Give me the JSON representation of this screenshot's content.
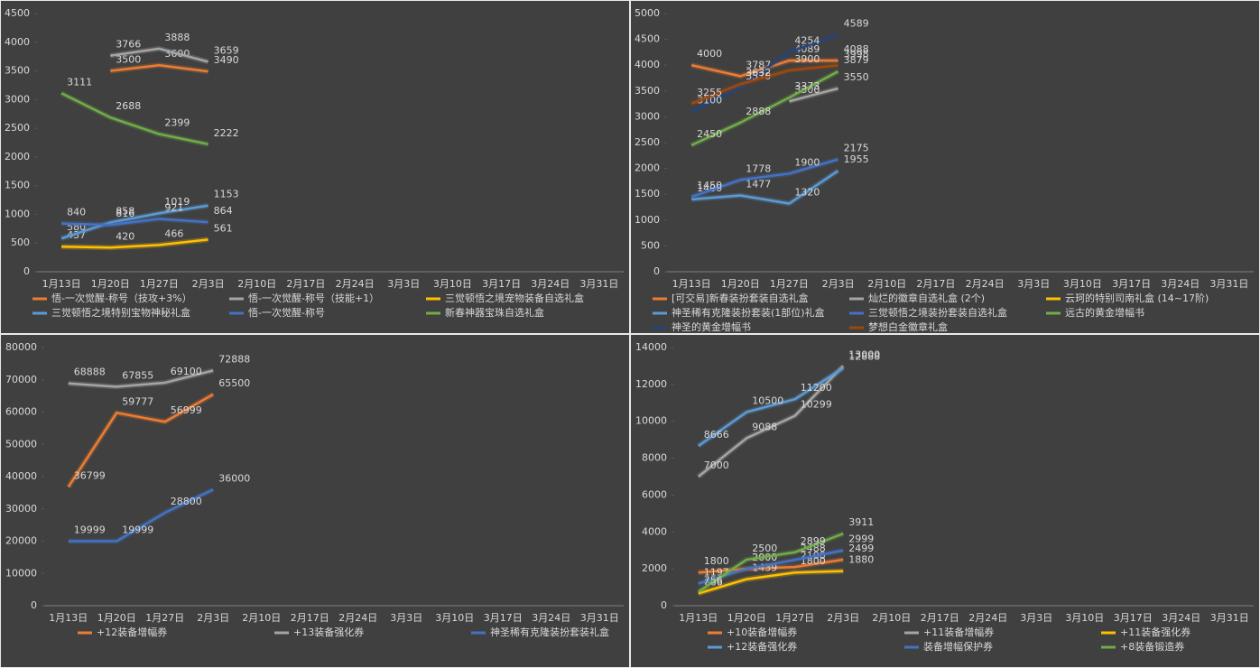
{
  "chart_data": [
    {
      "type": "line",
      "legend": "bottom",
      "grid": false,
      "categories": [
        "1月13日",
        "1月20日",
        "1月27日",
        "2月3日",
        "2月10日",
        "2月17日",
        "2月24日",
        "3月3日",
        "3月10日",
        "3月17日",
        "3月24日",
        "3月31日"
      ],
      "ylim": [
        0,
        4500
      ],
      "yticks": [
        0,
        500,
        1000,
        1500,
        2000,
        2500,
        3000,
        3500,
        4000,
        4500
      ],
      "series": [
        {
          "name": "悟-一次觉醒-称号（技攻+3%）",
          "color": "#ed7d31",
          "values": [
            null,
            3500,
            3600,
            3490,
            null,
            null,
            null,
            null,
            null,
            null,
            null,
            null
          ]
        },
        {
          "name": "悟-一次觉醒-称号（技能+1）",
          "color": "#a5a5a5",
          "values": [
            null,
            3766,
            3888,
            3659,
            null,
            null,
            null,
            null,
            null,
            null,
            null,
            null
          ]
        },
        {
          "name": "三觉顿悟之境宠物装备自选礼盒",
          "color": "#ffc000",
          "values": [
            437,
            420,
            466,
            561,
            null,
            null,
            null,
            null,
            null,
            null,
            null,
            null
          ]
        },
        {
          "name": "三觉顿悟之境特别宝物神秘礼盒",
          "color": "#5b9bd5",
          "values": [
            580,
            858,
            1019,
            1153,
            null,
            null,
            null,
            null,
            null,
            null,
            null,
            null
          ]
        },
        {
          "name": "悟-一次觉醒-称号",
          "color": "#4472c4",
          "values": [
            840,
            816,
            921,
            864,
            null,
            null,
            null,
            null,
            null,
            null,
            null,
            null
          ]
        },
        {
          "name": "新春神器宝珠自选礼盒",
          "color": "#70ad47",
          "values": [
            3111,
            2688,
            2399,
            2222,
            null,
            null,
            null,
            null,
            null,
            null,
            null,
            null
          ]
        }
      ]
    },
    {
      "type": "line",
      "legend": "bottom",
      "grid": false,
      "categories": [
        "1月13日",
        "1月20日",
        "1月27日",
        "2月3日",
        "2月10日",
        "2月17日",
        "2月24日",
        "3月3日",
        "3月10日",
        "3月17日",
        "3月24日",
        "3月31日"
      ],
      "ylim": [
        0,
        5000
      ],
      "yticks": [
        0,
        500,
        1000,
        1500,
        2000,
        2500,
        3000,
        3500,
        4000,
        4500,
        5000
      ],
      "series": [
        {
          "name": "[可交易]新春装扮套装自选礼盒",
          "color": "#ed7d31",
          "values": [
            4000,
            3787,
            4089,
            4088,
            null,
            null,
            null,
            null,
            null,
            null,
            null,
            null
          ]
        },
        {
          "name": "灿烂的徽章自选礼盒 (2个)",
          "color": "#a5a5a5",
          "values": [
            null,
            null,
            3300,
            3550,
            null,
            null,
            null,
            null,
            null,
            null,
            null,
            null
          ]
        },
        {
          "name": "云珂的特别司南礼盒 (14~17阶)",
          "color": "#ffc000",
          "values": [
            null,
            null,
            null,
            null,
            null,
            null,
            null,
            null,
            null,
            null,
            null,
            null
          ]
        },
        {
          "name": "神圣稀有克隆装扮套装(1部位)礼盒",
          "color": "#5b9bd5",
          "values": [
            1400,
            1477,
            1320,
            1955,
            null,
            null,
            null,
            null,
            null,
            null,
            null,
            null
          ]
        },
        {
          "name": "三觉顿悟之境装扮套装自选礼盒",
          "color": "#4472c4",
          "values": [
            1450,
            1778,
            1900,
            2175,
            null,
            null,
            null,
            null,
            null,
            null,
            null,
            null
          ]
        },
        {
          "name": "远古的黄金增幅书",
          "color": "#70ad47",
          "values": [
            2450,
            2888,
            3373,
            3879,
            null,
            null,
            null,
            null,
            null,
            null,
            null,
            null
          ]
        },
        {
          "name": "神圣的黄金增幅书",
          "color": "#264478",
          "values": [
            3100,
            3570,
            4254,
            4589,
            null,
            null,
            null,
            null,
            null,
            null,
            null,
            null
          ]
        },
        {
          "name": "梦想白金徽章礼盒",
          "color": "#9e480e",
          "values": [
            3255,
            3632,
            3900,
            3998,
            null,
            null,
            null,
            null,
            null,
            null,
            null,
            null
          ]
        }
      ]
    },
    {
      "type": "line",
      "legend": "bottom",
      "grid": false,
      "categories": [
        "1月13日",
        "1月20日",
        "1月27日",
        "2月3日",
        "2月10日",
        "2月17日",
        "2月24日",
        "3月3日",
        "3月10日",
        "3月17日",
        "3月24日",
        "3月31日"
      ],
      "ylim": [
        0,
        80000
      ],
      "yticks": [
        0,
        10000,
        20000,
        30000,
        40000,
        50000,
        60000,
        70000,
        80000
      ],
      "series": [
        {
          "name": "+12装备增幅券",
          "color": "#ed7d31",
          "values": [
            36799,
            59777,
            56999,
            65500,
            null,
            null,
            null,
            null,
            null,
            null,
            null,
            null
          ]
        },
        {
          "name": "+13装备强化券",
          "color": "#a5a5a5",
          "values": [
            68888,
            67855,
            69100,
            72888,
            null,
            null,
            null,
            null,
            null,
            null,
            null,
            null
          ]
        },
        {
          "name": "神圣稀有克隆装扮套装礼盒",
          "color": "#4472c4",
          "values": [
            19999,
            19999,
            28800,
            36000,
            null,
            null,
            null,
            null,
            null,
            null,
            null,
            null
          ]
        }
      ]
    },
    {
      "type": "line",
      "legend": "bottom",
      "grid": false,
      "categories": [
        "1月13日",
        "1月20日",
        "1月27日",
        "2月3日",
        "2月10日",
        "2月17日",
        "2月24日",
        "3月3日",
        "3月10日",
        "3月17日",
        "3月24日",
        "3月31日"
      ],
      "ylim": [
        0,
        14000
      ],
      "yticks": [
        0,
        2000,
        4000,
        6000,
        8000,
        10000,
        12000,
        14000
      ],
      "series": [
        {
          "name": "+10装备增幅券",
          "color": "#ed7d31",
          "values": [
            1800,
            2000,
            2100,
            2499,
            null,
            null,
            null,
            null,
            null,
            null,
            null,
            null
          ]
        },
        {
          "name": "+11装备增幅券",
          "color": "#a5a5a5",
          "values": [
            7000,
            9088,
            10299,
            13000,
            null,
            null,
            null,
            null,
            null,
            null,
            null,
            null
          ]
        },
        {
          "name": "+11装备强化券",
          "color": "#ffc000",
          "values": [
            666,
            1439,
            1800,
            1880,
            null,
            null,
            null,
            null,
            null,
            null,
            null,
            null
          ]
        },
        {
          "name": "+12装备强化券",
          "color": "#5b9bd5",
          "values": [
            8666,
            10500,
            11200,
            12888,
            null,
            null,
            null,
            null,
            null,
            null,
            null,
            null
          ]
        },
        {
          "name": "装备增幅保护券",
          "color": "#4472c4",
          "values": [
            1197,
            2000,
            2488,
            2999,
            null,
            null,
            null,
            null,
            null,
            null,
            null,
            null
          ]
        },
        {
          "name": "+8装备锻造券",
          "color": "#70ad47",
          "values": [
            756,
            2500,
            2899,
            3911,
            null,
            null,
            null,
            null,
            null,
            null,
            null,
            null
          ]
        }
      ]
    }
  ]
}
